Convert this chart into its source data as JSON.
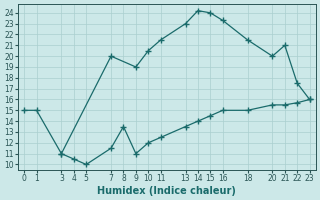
{
  "title": "",
  "xlabel": "Humidex (Indice chaleur)",
  "ylabel": "",
  "bg_color": "#cce8e8",
  "grid_color": "#aacfcf",
  "line_color": "#1a6b6b",
  "xlim": [
    -0.5,
    23.5
  ],
  "ylim": [
    9.5,
    24.8
  ],
  "xticks": [
    0,
    1,
    3,
    4,
    5,
    7,
    8,
    9,
    10,
    11,
    13,
    14,
    15,
    16,
    18,
    20,
    21,
    22,
    23
  ],
  "yticks": [
    10,
    11,
    12,
    13,
    14,
    15,
    16,
    17,
    18,
    19,
    20,
    21,
    22,
    23,
    24
  ],
  "upper_line": {
    "x": [
      0,
      1,
      3,
      7,
      9,
      10,
      11,
      13,
      14,
      15,
      16,
      18,
      20,
      21,
      22,
      23
    ],
    "y": [
      15,
      15,
      11,
      20,
      19,
      20.5,
      21.5,
      23,
      24.2,
      24,
      23.3,
      21.5,
      20,
      21,
      17.5,
      16
    ]
  },
  "lower_line": {
    "x": [
      3,
      4,
      5,
      7,
      8,
      9,
      10,
      11,
      13,
      14,
      15,
      16,
      18,
      20,
      21,
      22,
      23
    ],
    "y": [
      11,
      10.5,
      10,
      11.5,
      13.5,
      11,
      12,
      12.5,
      13.5,
      14,
      14.5,
      15,
      15,
      15.5,
      15.5,
      15.7,
      16
    ]
  },
  "marker": "+",
  "marker_size": 4,
  "marker_ew": 1.0,
  "line_width": 0.9,
  "tick_fontsize": 5.5,
  "xlabel_fontsize": 7
}
